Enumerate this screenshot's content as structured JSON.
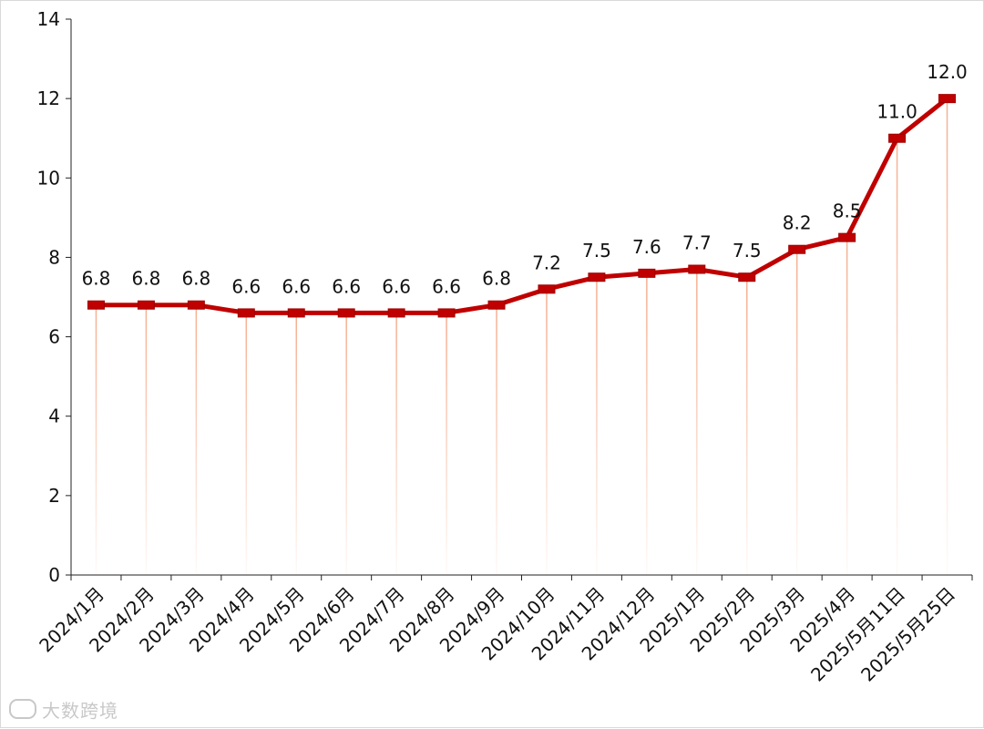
{
  "chart_data": {
    "type": "line",
    "categories": [
      "2024/1月",
      "2024/2月",
      "2024/3月",
      "2024/4月",
      "2024/5月",
      "2024/6月",
      "2024/7月",
      "2024/8月",
      "2024/9月",
      "2024/10月",
      "2024/11月",
      "2024/12月",
      "2025/1月",
      "2025/2月",
      "2025/3月",
      "2025/4月",
      "2025/5月11日",
      "2025/5月25日"
    ],
    "values": [
      6.8,
      6.8,
      6.8,
      6.6,
      6.6,
      6.6,
      6.6,
      6.6,
      6.8,
      7.2,
      7.5,
      7.6,
      7.7,
      7.5,
      8.2,
      8.5,
      11.0,
      12.0
    ],
    "data_labels": [
      "6.8",
      "6.8",
      "6.8",
      "6.6",
      "6.6",
      "6.6",
      "6.6",
      "6.6",
      "6.8",
      "7.2",
      "7.5",
      "7.6",
      "7.7",
      "7.5",
      "8.2",
      "8.5",
      "11.0",
      "12.0"
    ],
    "y_ticks": [
      "0",
      "2",
      "4",
      "6",
      "8",
      "10",
      "12",
      "14"
    ],
    "ylim": [
      0,
      14
    ],
    "title": "",
    "xlabel": "",
    "ylabel": "",
    "grid": false,
    "legend": "none",
    "colors": {
      "line": "#c00000",
      "drop_line": "#f4a582"
    }
  },
  "watermark": {
    "text": "大数跨境"
  }
}
